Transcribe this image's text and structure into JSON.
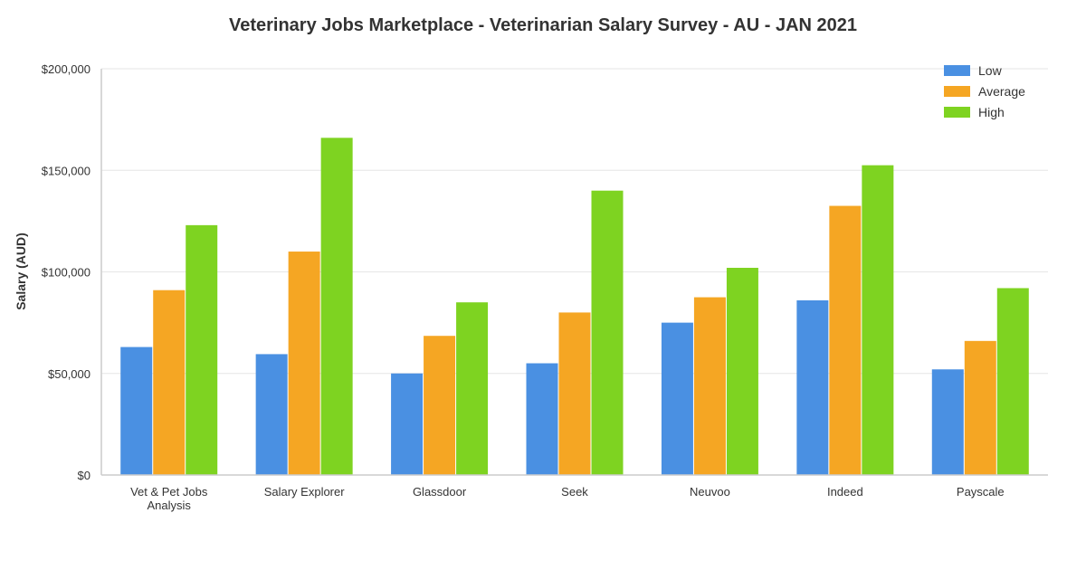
{
  "chart_data": {
    "type": "bar",
    "title": "Veterinary Jobs Marketplace - Veterinarian Salary Survey - AU - JAN 2021",
    "xlabel": "",
    "ylabel": "Salary (AUD)",
    "ylim": [
      0,
      200000
    ],
    "yticks": [
      0,
      50000,
      100000,
      150000,
      200000
    ],
    "ytick_labels": [
      "$0",
      "$50,000",
      "$100,000",
      "$150,000",
      "$200,000"
    ],
    "categories": [
      [
        "Vet & Pet Jobs",
        "Analysis"
      ],
      [
        "Salary Explorer"
      ],
      [
        "Glassdoor"
      ],
      [
        "Seek"
      ],
      [
        "Neuvoo"
      ],
      [
        "Indeed"
      ],
      [
        "Payscale"
      ]
    ],
    "series": [
      {
        "name": "Low",
        "color": "#4a90e2",
        "values": [
          63000,
          59500,
          50000,
          55000,
          75000,
          86000,
          52000
        ]
      },
      {
        "name": "Average",
        "color": "#f5a623",
        "values": [
          91000,
          110000,
          68500,
          80000,
          87500,
          132500,
          66000
        ]
      },
      {
        "name": "High",
        "color": "#7ed321",
        "values": [
          123000,
          166000,
          85000,
          140000,
          102000,
          152500,
          92000
        ]
      }
    ],
    "grid": true,
    "legend": "top-right"
  }
}
